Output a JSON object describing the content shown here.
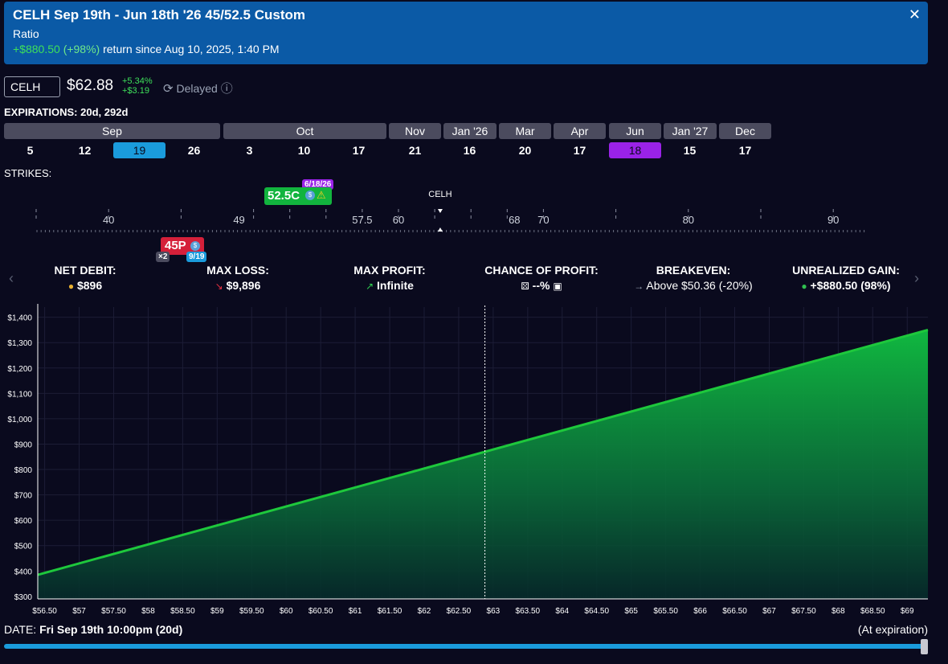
{
  "header": {
    "title": "CELH Sep 19th - Jun 18th '26 45/52.5 Custom",
    "subtitle": "Ratio",
    "gain": "+$880.50",
    "gain_pct": "(+98%)",
    "return_text": "return since Aug 10, 2025, 1:40 PM",
    "close_glyph": "✕"
  },
  "ticker": {
    "symbol": "CELH",
    "price": "$62.88",
    "change_pct": "+5.34%",
    "change_abs": "+$3.19",
    "status": "Delayed"
  },
  "expirations": {
    "label": "EXPIRATIONS:",
    "summary": "20d, 292d",
    "months": [
      {
        "label": "Sep"
      },
      {
        "label": "Oct"
      },
      {
        "label": "Nov"
      },
      {
        "label": "Jan '26"
      },
      {
        "label": "Mar"
      },
      {
        "label": "Apr"
      },
      {
        "label": "Jun"
      },
      {
        "label": "Jan '27"
      },
      {
        "label": "Dec"
      }
    ],
    "days": [
      {
        "label": "5"
      },
      {
        "label": "12"
      },
      {
        "label": "19"
      },
      {
        "label": "26"
      },
      {
        "label": "3"
      },
      {
        "label": "10"
      },
      {
        "label": "17"
      },
      {
        "label": "21"
      },
      {
        "label": "16"
      },
      {
        "label": "20"
      },
      {
        "label": "17"
      },
      {
        "label": "18"
      },
      {
        "label": "15"
      },
      {
        "label": "17"
      }
    ]
  },
  "strikes": {
    "label": "STRIKES:",
    "axis_labels": [
      "40",
      "49",
      "57.5",
      "60",
      "68",
      "70",
      "80",
      "90"
    ],
    "underlying": "CELH",
    "call_leg": {
      "label": "52.5C",
      "date": "6/18/26"
    },
    "put_leg": {
      "label": "45P",
      "qty": "×2",
      "date": "9/19"
    }
  },
  "stats": {
    "net_debit": {
      "label": "NET DEBIT:",
      "value": "$896"
    },
    "max_loss": {
      "label": "MAX LOSS:",
      "value": "$9,896"
    },
    "max_profit": {
      "label": "MAX PROFIT:",
      "value": "Infinite"
    },
    "chance": {
      "label": "CHANCE OF PROFIT:",
      "value": "--%"
    },
    "breakeven": {
      "label": "BREAKEVEN:",
      "value": "Above $50.36 (-20%)"
    },
    "unrealized": {
      "label": "UNREALIZED GAIN:",
      "value": "+$880.50 (98%)"
    }
  },
  "chart_data": {
    "type": "area",
    "x": [
      56.4,
      69.3
    ],
    "y": [
      385,
      1350
    ],
    "ylim": [
      290,
      1440
    ],
    "xlim": [
      56.4,
      69.3
    ],
    "y_ticks": [
      "$300",
      "$400",
      "$500",
      "$600",
      "$700",
      "$800",
      "$900",
      "$1,000",
      "$1,100",
      "$1,200",
      "$1,300",
      "$1,400"
    ],
    "x_ticks": [
      "$56.50",
      "$57",
      "$57.50",
      "$58",
      "$58.50",
      "$59",
      "$59.50",
      "$60",
      "$60.50",
      "$61",
      "$61.50",
      "$62",
      "$62.50",
      "$63",
      "$63.50",
      "$64",
      "$64.50",
      "$65",
      "$65.50",
      "$66",
      "$66.50",
      "$67",
      "$67.50",
      "$68",
      "$68.50",
      "$69"
    ],
    "current_price": 62.88,
    "line_color": "#1ec83c",
    "grid": true
  },
  "footer": {
    "date_label": "DATE:",
    "date_value": "Fri Sep 19th 10:00pm (20d)",
    "at_expiration": "(At expiration)"
  }
}
